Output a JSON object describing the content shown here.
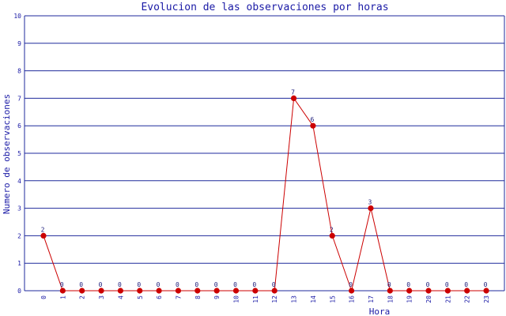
{
  "chart_data": {
    "type": "line",
    "title": "Evolucion de las observaciones por horas",
    "xlabel": "Hora",
    "ylabel": "Numero de observaciones",
    "categories": [
      "0",
      "1",
      "2",
      "3",
      "4",
      "5",
      "6",
      "7",
      "8",
      "9",
      "10",
      "11",
      "12",
      "13",
      "14",
      "15",
      "16",
      "17",
      "18",
      "19",
      "20",
      "21",
      "22",
      "23"
    ],
    "series": [
      {
        "values": [
          2,
          0,
          0,
          0,
          0,
          0,
          0,
          0,
          0,
          0,
          0,
          0,
          0,
          7,
          6,
          2,
          0,
          3,
          0,
          0,
          0,
          0,
          0,
          0
        ]
      }
    ],
    "ylim": [
      0,
      10
    ],
    "yticks": [
      "0",
      "1",
      "2",
      "3",
      "4",
      "5",
      "6",
      "7",
      "8",
      "9",
      "10"
    ],
    "grid": true,
    "legend": "none",
    "data_labels": true,
    "colors": {
      "line": "#cc0000",
      "marker": "#cc0000",
      "grid": "#1f2a9c",
      "text": "#1a1aa6"
    }
  }
}
